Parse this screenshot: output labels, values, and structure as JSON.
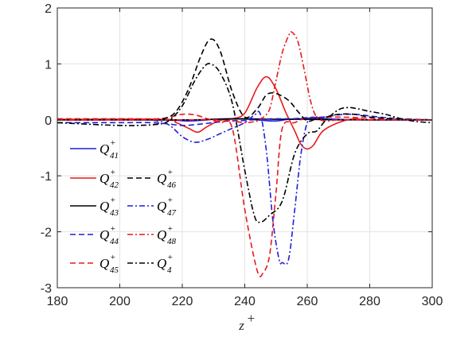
{
  "chart_data": {
    "type": "line",
    "xlabel": "z",
    "xlabel_sup": "+",
    "ylabel": "",
    "xlim": [
      180,
      300
    ],
    "ylim": [
      -3,
      2
    ],
    "xticks": [
      180,
      200,
      220,
      240,
      260,
      280,
      300
    ],
    "yticks": [
      -3,
      -2,
      -1,
      0,
      1,
      2
    ],
    "grid": true,
    "legend_placement": "lower-left",
    "series": [
      {
        "name": "Q41",
        "label_base": "Q",
        "label_sub": "41",
        "label_sup": "+",
        "color": "#1f1fdd",
        "dash": "solid",
        "x": [
          180,
          210,
          218,
          222,
          226,
          230,
          234,
          238,
          242,
          246,
          250,
          254,
          258,
          262,
          266,
          270,
          280,
          300
        ],
        "y": [
          0,
          0,
          -0.01,
          -0.02,
          -0.01,
          0.01,
          0.02,
          0.02,
          0.01,
          -0.01,
          -0.02,
          0.01,
          0.02,
          0.03,
          0.02,
          0.01,
          0,
          0
        ]
      },
      {
        "name": "Q42",
        "label_base": "Q",
        "label_sub": "42",
        "label_sup": "+",
        "color": "#e8191c",
        "dash": "solid",
        "x": [
          180,
          214,
          218,
          222,
          225,
          228,
          232,
          236,
          240,
          244,
          247,
          250,
          253,
          256,
          258,
          260,
          262,
          265,
          270,
          275,
          280,
          300
        ],
        "y": [
          0.01,
          0.01,
          -0.05,
          -0.15,
          -0.22,
          -0.12,
          -0.01,
          0.02,
          0.12,
          0.58,
          0.77,
          0.55,
          0.15,
          -0.2,
          -0.44,
          -0.52,
          -0.45,
          -0.2,
          -0.05,
          0.02,
          0,
          0
        ]
      },
      {
        "name": "Q43",
        "label_base": "Q",
        "label_sub": "43",
        "label_sup": "+",
        "color": "#000000",
        "dash": "solid",
        "x": [
          180,
          220,
          230,
          240,
          250,
          260,
          270,
          300
        ],
        "y": [
          0,
          0,
          0.01,
          0.02,
          0.01,
          0.01,
          0,
          0
        ]
      },
      {
        "name": "Q44",
        "label_base": "Q",
        "label_sub": "44",
        "label_sup": "+",
        "color": "#1f1fdd",
        "dash": "dash",
        "x": [
          180,
          200,
          210,
          215,
          220,
          225,
          230,
          235,
          240,
          245,
          250,
          255,
          260,
          265,
          270,
          275,
          280,
          285,
          290,
          300
        ],
        "y": [
          -0.05,
          -0.05,
          -0.05,
          -0.07,
          -0.1,
          -0.08,
          -0.05,
          -0.02,
          -0.01,
          0.01,
          0.02,
          0.02,
          0.04,
          0.05,
          0.09,
          0.1,
          0.07,
          0.04,
          0.02,
          0
        ]
      },
      {
        "name": "Q45",
        "label_base": "Q",
        "label_sub": "45",
        "label_sup": "+",
        "color": "#e8191c",
        "dash": "dash",
        "x": [
          180,
          200,
          212,
          216,
          220,
          224,
          228,
          232,
          236,
          240,
          244,
          246,
          248,
          250,
          252,
          256,
          260,
          270,
          280,
          290,
          300
        ],
        "y": [
          0.02,
          0.02,
          0.02,
          0.05,
          0.1,
          0.09,
          0.02,
          -0.05,
          -0.15,
          -1.6,
          -2.7,
          -2.72,
          -2.4,
          -1.3,
          -0.15,
          -0.05,
          0.03,
          0.05,
          0.03,
          0.01,
          0
        ]
      },
      {
        "name": "Q46",
        "label_base": "Q",
        "label_sub": "46",
        "label_sup": "+",
        "color": "#000000",
        "dash": "dash",
        "x": [
          180,
          208,
          214,
          218,
          222,
          226,
          229,
          232,
          236,
          240,
          244,
          247,
          250,
          254,
          257,
          260,
          263,
          266,
          270,
          275,
          280,
          290,
          300
        ],
        "y": [
          0,
          0,
          0.02,
          0.15,
          0.55,
          1.15,
          1.44,
          1.25,
          0.5,
          0.05,
          0.2,
          0.45,
          0.47,
          0.35,
          0.15,
          -0.02,
          0.02,
          0.05,
          0.1,
          0.1,
          0.05,
          0.01,
          0
        ]
      },
      {
        "name": "Q47",
        "label_base": "Q",
        "label_sub": "47",
        "label_sup": "+",
        "color": "#1f1fdd",
        "dash": "dashdot",
        "x": [
          180,
          205,
          212,
          216,
          220,
          224,
          228,
          232,
          236,
          240,
          243,
          245,
          247,
          249,
          251,
          252,
          254,
          256,
          258,
          260,
          262,
          266,
          270,
          280,
          290,
          300
        ],
        "y": [
          0,
          0,
          -0.02,
          -0.1,
          -0.3,
          -0.4,
          -0.35,
          -0.25,
          -0.15,
          -0.05,
          0.08,
          0.1,
          -0.6,
          -1.8,
          -2.5,
          -2.55,
          -2.5,
          -1.6,
          -0.6,
          -0.05,
          0.05,
          0.02,
          0,
          0,
          0,
          0
        ]
      },
      {
        "name": "Q48",
        "label_base": "Q",
        "label_sub": "48",
        "label_sup": "+",
        "color": "#e8191c",
        "dash": "dashdot",
        "x": [
          180,
          210,
          220,
          230,
          236,
          240,
          244,
          246,
          248,
          250,
          252,
          254,
          255,
          257,
          259,
          261,
          263,
          266,
          270,
          280,
          300
        ],
        "y": [
          0,
          0,
          0,
          0,
          -0.02,
          -0.05,
          -0.02,
          0.05,
          0.2,
          0.7,
          1.2,
          1.5,
          1.57,
          1.4,
          0.9,
          0.35,
          0.05,
          -0.02,
          0,
          0,
          0
        ]
      },
      {
        "name": "Q4",
        "label_base": "Q",
        "label_sub": "4",
        "label_sup": "+",
        "color": "#000000",
        "dash": "dashdot",
        "x": [
          180,
          200,
          212,
          216,
          220,
          224,
          227,
          229,
          232,
          236,
          240,
          243,
          245,
          248,
          252,
          256,
          260,
          263,
          266,
          270,
          273,
          276,
          280,
          285,
          290,
          295,
          300
        ],
        "y": [
          -0.05,
          -0.1,
          -0.08,
          0,
          0.25,
          0.7,
          0.95,
          1.0,
          0.85,
          0.3,
          -0.9,
          -1.7,
          -1.83,
          -1.7,
          -1.45,
          -0.6,
          -0.25,
          -0.2,
          0,
          0.18,
          0.22,
          0.2,
          0.15,
          0.1,
          0.02,
          -0.03,
          -0.05
        ]
      }
    ],
    "legend_layout": [
      [
        "Q41",
        ""
      ],
      [
        "Q42",
        "Q46"
      ],
      [
        "Q43",
        "Q47"
      ],
      [
        "Q44",
        "Q48"
      ],
      [
        "Q45",
        "Q4"
      ]
    ]
  }
}
